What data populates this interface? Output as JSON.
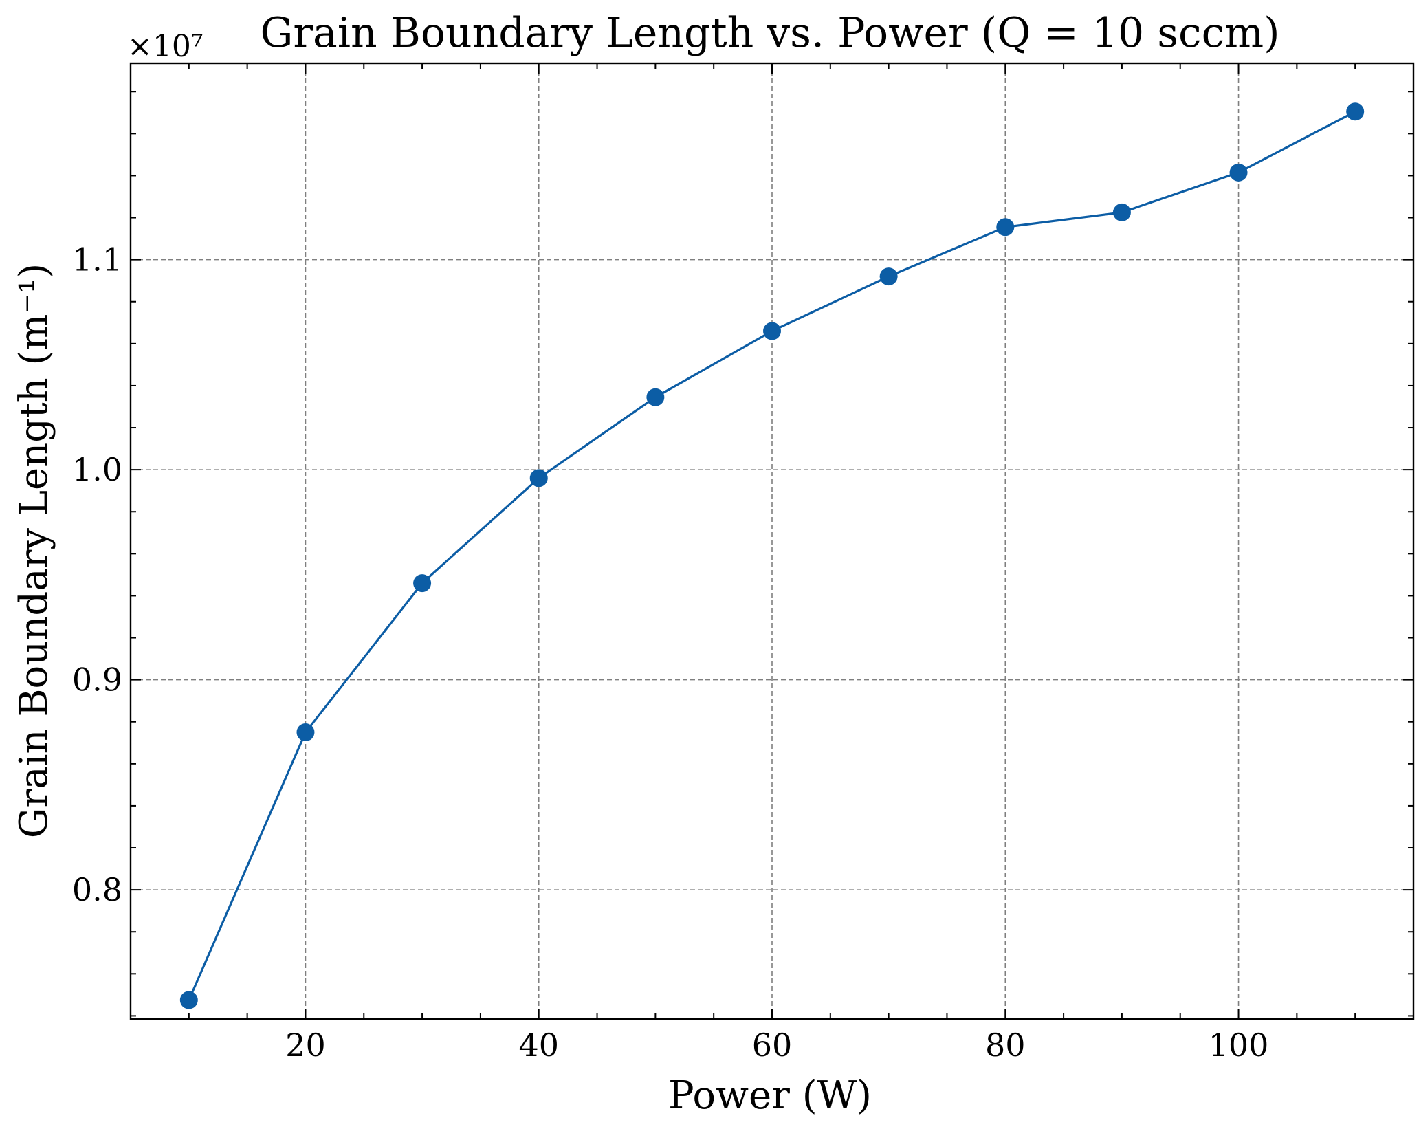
{
  "chart_data": {
    "type": "line",
    "title": "Grain Boundary Length vs. Power (Q = 10 sccm)",
    "xlabel": "Power (W)",
    "ylabel": "Grain Boundary Length (m⁻¹)",
    "y_offset_label": "×10⁷",
    "xlim": [
      5,
      115
    ],
    "ylim": [
      0.7385,
      1.1935
    ],
    "x_ticks": [
      20,
      40,
      60,
      80,
      100
    ],
    "y_ticks": [
      0.8,
      0.9,
      1.0,
      1.1
    ],
    "y_tick_labels": [
      "0.8",
      "0.9",
      "1.0",
      "1.1"
    ],
    "x_minor_step": 5,
    "y_minor_step": 0.02,
    "grid": true,
    "legend": "none",
    "series": [
      {
        "color": "#0C5DA5",
        "marker": "circle",
        "x": [
          10,
          20,
          30,
          40,
          50,
          60,
          70,
          80,
          90,
          100,
          110
        ],
        "y": [
          0.7475,
          0.875,
          0.946,
          0.996,
          1.0345,
          1.066,
          1.092,
          1.1155,
          1.1225,
          1.1415,
          1.1705
        ]
      }
    ]
  }
}
